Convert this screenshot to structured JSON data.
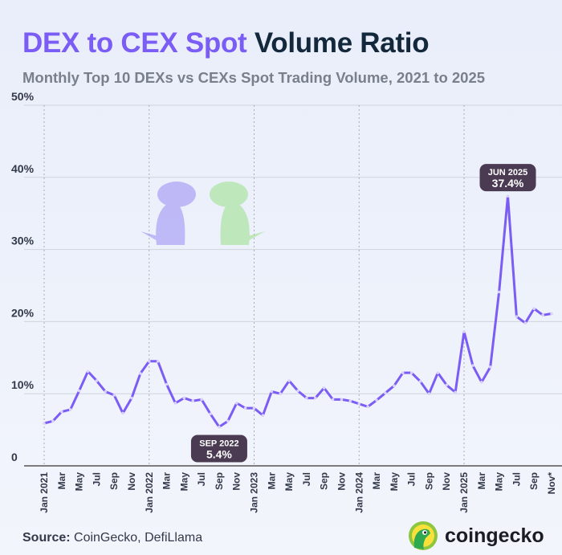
{
  "title_part1": "DEX to CEX Spot",
  "title_part2": "Volume Ratio",
  "subtitle": "Monthly Top 10 DEXs vs CEXs Spot Trading Volume, 2021 to 2025",
  "source_label": "Source:",
  "source_text": " CoinGecko, DefiLlama",
  "brand": "coingecko",
  "colors": {
    "line": "#7b5cf5",
    "title_accent": "#7b5cf5",
    "title_dark": "#14283c",
    "callout": "#4a3b52"
  },
  "chart_data": {
    "type": "line",
    "title": "DEX to CEX Spot Volume Ratio",
    "ylim": [
      0,
      50
    ],
    "yticks": [
      "0",
      "10%",
      "20%",
      "30%",
      "40%",
      "50%"
    ],
    "grid": true,
    "x": [
      "Jan 2021",
      "Feb",
      "Mar",
      "Apr",
      "May",
      "Jun",
      "Jul",
      "Aug",
      "Sep",
      "Oct",
      "Nov",
      "Dec",
      "Jan 2022",
      "Feb",
      "Mar",
      "Apr",
      "May",
      "Jun",
      "Jul",
      "Aug",
      "Sep",
      "Oct",
      "Nov",
      "Dec",
      "Jan 2023",
      "Feb",
      "Mar",
      "Apr",
      "May",
      "Jun",
      "Jul",
      "Aug",
      "Sep",
      "Oct",
      "Nov",
      "Dec",
      "Jan 2024",
      "Feb",
      "Mar",
      "Apr",
      "May",
      "Jun",
      "Jul",
      "Aug",
      "Sep",
      "Oct",
      "Nov",
      "Dec",
      "Jan 2025",
      "Feb",
      "Mar",
      "Apr",
      "May",
      "Jun",
      "Jul",
      "Aug",
      "Sep",
      "Oct",
      "Nov*"
    ],
    "xtick_labels": [
      "Jan 2021",
      "",
      "Mar",
      "",
      "May",
      "",
      "Jul",
      "",
      "Sep",
      "",
      "Nov",
      "",
      "Jan 2022",
      "",
      "Mar",
      "",
      "May",
      "",
      "Jul",
      "",
      "Sep",
      "",
      "Nov",
      "",
      "Jan 2023",
      "",
      "Mar",
      "",
      "May",
      "",
      "Jul",
      "",
      "Sep",
      "",
      "Nov",
      "",
      "Jan 2024",
      "",
      "Mar",
      "",
      "May",
      "",
      "Jul",
      "",
      "Sep",
      "",
      "Nov",
      "",
      "Jan 2025",
      "",
      "Mar",
      "",
      "May",
      "",
      "Jul",
      "",
      "Sep",
      "",
      "Nov*"
    ],
    "values": [
      5.9,
      6.2,
      7.5,
      7.8,
      10.4,
      13.1,
      11.8,
      10.3,
      9.8,
      7.3,
      9.4,
      12.8,
      14.5,
      14.5,
      11.3,
      8.7,
      9.4,
      9.0,
      9.2,
      7.2,
      5.4,
      6.2,
      8.7,
      8.0,
      8.0,
      7.0,
      10.3,
      10.0,
      11.8,
      10.4,
      9.4,
      9.4,
      10.8,
      9.2,
      9.2,
      9.0,
      8.6,
      8.2,
      9.1,
      10.1,
      11.1,
      12.9,
      12.9,
      11.7,
      10.0,
      12.9,
      11.2,
      10.2,
      18.6,
      13.9,
      11.6,
      13.7,
      24.1,
      37.4,
      20.7,
      19.8,
      21.8,
      20.9,
      21.1
    ],
    "annotations": [
      {
        "index": 20,
        "label": "SEP 2022",
        "value": "5.4%",
        "position": "below"
      },
      {
        "index": 53,
        "label": "JUN 2025",
        "value": "37.4%",
        "position": "above"
      }
    ]
  }
}
